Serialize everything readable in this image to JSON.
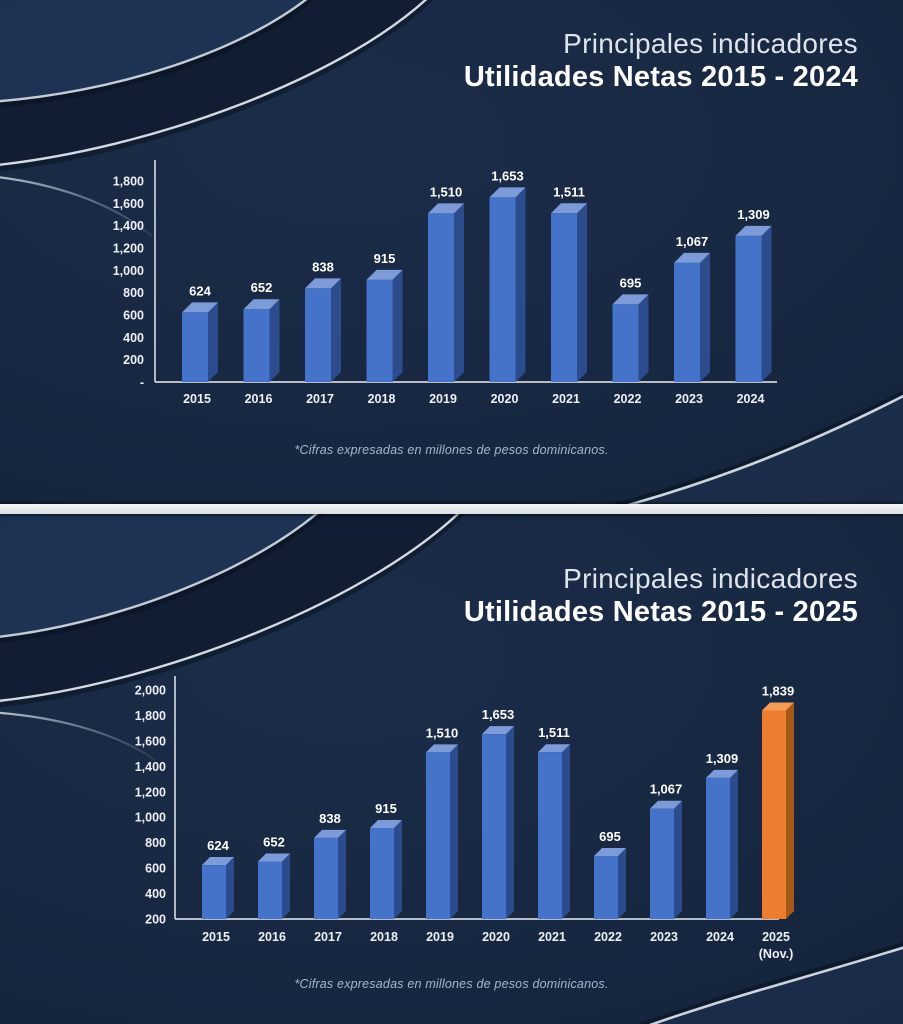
{
  "slides": [
    {
      "title_line1": "Principales indicadores",
      "title_line2": "Utilidades Netas 2015 - 2024",
      "footnote": "*Cifras expresadas en millones de pesos dominicanos."
    },
    {
      "title_line1": "Principales indicadores",
      "title_line2": "Utilidades Netas 2015 - 2025",
      "footnote": "*Cifras expresadas en millones de pesos dominicanos."
    }
  ],
  "chart_data": [
    {
      "type": "bar",
      "title": "Utilidades Netas 2015 - 2024",
      "unit": "millones de pesos dominicanos",
      "categories": [
        "2015",
        "2016",
        "2017",
        "2018",
        "2019",
        "2020",
        "2021",
        "2022",
        "2023",
        "2024"
      ],
      "values": [
        624,
        652,
        838,
        915,
        1510,
        1653,
        1511,
        695,
        1067,
        1309
      ],
      "value_labels": [
        "624",
        "652",
        "838",
        "915",
        "1,510",
        "1,653",
        "1,511",
        "695",
        "1,067",
        "1,309"
      ],
      "ylim": [
        0,
        1800
      ],
      "ytick_values": [
        1800,
        1600,
        1400,
        1200,
        1000,
        800,
        600,
        400,
        200,
        0
      ],
      "ytick_labels": [
        "1,800",
        "1,600",
        "1,400",
        "1,200",
        "1,000",
        "800",
        "600",
        "400",
        "200",
        "-"
      ],
      "grid": false,
      "legend": false,
      "bar_style": {
        "front": "#4573c9",
        "top": "#7d9bd9",
        "side": "#2c4c8e"
      }
    },
    {
      "type": "bar",
      "title": "Utilidades Netas 2015 - 2025",
      "unit": "millones de pesos dominicanos",
      "categories": [
        "2015",
        "2016",
        "2017",
        "2018",
        "2019",
        "2020",
        "2021",
        "2022",
        "2023",
        "2024",
        "2025\n(Nov.)"
      ],
      "values": [
        624,
        652,
        838,
        915,
        1510,
        1653,
        1511,
        695,
        1067,
        1309,
        1839
      ],
      "value_labels": [
        "624",
        "652",
        "838",
        "915",
        "1,510",
        "1,653",
        "1,511",
        "695",
        "1,067",
        "1,309",
        "1,839"
      ],
      "ylim": [
        200,
        2000
      ],
      "ytick_values": [
        2000,
        1800,
        1600,
        1400,
        1200,
        1000,
        800,
        600,
        400,
        200
      ],
      "ytick_labels": [
        "2,000",
        "1,800",
        "1,600",
        "1,400",
        "1,200",
        "1,000",
        "800",
        "600",
        "400",
        "200"
      ],
      "grid": false,
      "legend": false,
      "bar_style": {
        "front": "#4573c9",
        "top": "#7d9bd9",
        "side": "#2c4c8e"
      },
      "highlight": {
        "index": 10,
        "front": "#ee7e2f",
        "top": "#f49c55",
        "side": "#a55a17"
      }
    }
  ],
  "colors": {
    "background": "#16263f",
    "axis": "#ccd3dc",
    "tick_text": "#edf0f5",
    "value_text": "#ffffff",
    "bar_blue": "#4573c9",
    "bar_orange": "#ee7e2f",
    "divider": "#e9ebee",
    "swoosh_line": "#c3cbd6"
  }
}
